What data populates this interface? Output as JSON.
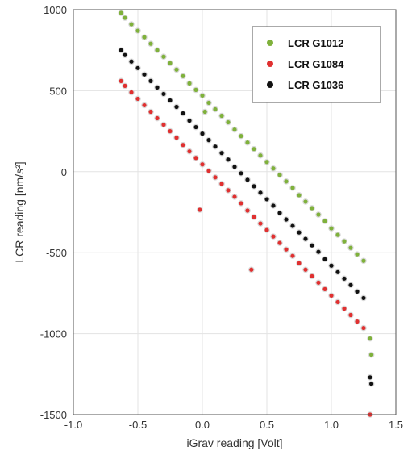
{
  "chart_data": {
    "type": "scatter",
    "title": "",
    "xlabel": "iGrav reading [Volt]",
    "ylabel": "LCR reading [nm/s²]",
    "xlim": [
      -1.0,
      1.5
    ],
    "ylim": [
      -1500,
      1000
    ],
    "xticks": [
      -1.0,
      -0.5,
      0.0,
      0.5,
      1.0,
      1.5
    ],
    "xtick_labels": [
      "-1.0",
      "-0.5",
      "0.0",
      "0.5",
      "1.0",
      "1.5"
    ],
    "yticks": [
      -1500,
      -1000,
      -500,
      0,
      500,
      1000
    ],
    "ytick_labels": [
      "-1500",
      "-1000",
      "-500",
      "0",
      "500",
      "1000"
    ],
    "grid": true,
    "legend_position": "top-right",
    "series": [
      {
        "name": "LCR G1012",
        "color": "#7fb13b",
        "x": [
          -0.63,
          -0.6,
          -0.55,
          -0.5,
          -0.45,
          -0.4,
          -0.35,
          -0.3,
          -0.25,
          -0.2,
          -0.15,
          -0.1,
          -0.05,
          0.0,
          0.02,
          0.05,
          0.1,
          0.15,
          0.2,
          0.25,
          0.3,
          0.35,
          0.4,
          0.45,
          0.5,
          0.55,
          0.6,
          0.65,
          0.7,
          0.75,
          0.8,
          0.85,
          0.9,
          0.95,
          1.0,
          1.05,
          1.1,
          1.15,
          1.2,
          1.25,
          1.3,
          1.31
        ],
        "y": [
          980,
          950,
          910,
          870,
          830,
          790,
          750,
          710,
          670,
          630,
          590,
          545,
          505,
          470,
          370,
          425,
          385,
          345,
          305,
          260,
          220,
          180,
          140,
          100,
          60,
          20,
          -20,
          -60,
          -100,
          -145,
          -185,
          -225,
          -265,
          -305,
          -350,
          -390,
          -430,
          -470,
          -510,
          -550,
          -1030,
          -1130
        ]
      },
      {
        "name": "LCR G1084",
        "color": "#e03030",
        "x": [
          -0.63,
          -0.6,
          -0.55,
          -0.5,
          -0.45,
          -0.4,
          -0.35,
          -0.3,
          -0.25,
          -0.2,
          -0.15,
          -0.1,
          -0.05,
          0.0,
          -0.02,
          0.05,
          0.1,
          0.15,
          0.2,
          0.25,
          0.3,
          0.35,
          0.38,
          0.4,
          0.45,
          0.5,
          0.55,
          0.6,
          0.65,
          0.7,
          0.75,
          0.8,
          0.85,
          0.9,
          0.95,
          1.0,
          1.05,
          1.1,
          1.15,
          1.2,
          1.25,
          1.3
        ],
        "y": [
          560,
          530,
          490,
          450,
          410,
          370,
          330,
          290,
          250,
          210,
          165,
          125,
          85,
          45,
          -235,
          5,
          -35,
          -75,
          -115,
          -155,
          -195,
          -240,
          -605,
          -280,
          -320,
          -360,
          -400,
          -440,
          -480,
          -520,
          -565,
          -605,
          -645,
          -685,
          -725,
          -765,
          -805,
          -845,
          -885,
          -925,
          -965,
          -1500
        ]
      },
      {
        "name": "LCR G1036",
        "color": "#111111",
        "x": [
          -0.63,
          -0.6,
          -0.55,
          -0.5,
          -0.45,
          -0.4,
          -0.35,
          -0.3,
          -0.25,
          -0.2,
          -0.15,
          -0.1,
          -0.05,
          0.0,
          0.05,
          0.1,
          0.15,
          0.2,
          0.25,
          0.3,
          0.35,
          0.4,
          0.45,
          0.5,
          0.55,
          0.6,
          0.65,
          0.7,
          0.75,
          0.8,
          0.85,
          0.9,
          0.95,
          1.0,
          1.05,
          1.1,
          1.15,
          1.2,
          1.25,
          1.3,
          1.31
        ],
        "y": [
          750,
          720,
          680,
          640,
          600,
          560,
          520,
          480,
          440,
          400,
          360,
          315,
          275,
          235,
          195,
          155,
          115,
          75,
          30,
          -10,
          -50,
          -90,
          -130,
          -170,
          -210,
          -255,
          -295,
          -335,
          -375,
          -415,
          -455,
          -495,
          -540,
          -580,
          -620,
          -660,
          -700,
          -740,
          -780,
          -1270,
          -1310
        ]
      }
    ]
  }
}
